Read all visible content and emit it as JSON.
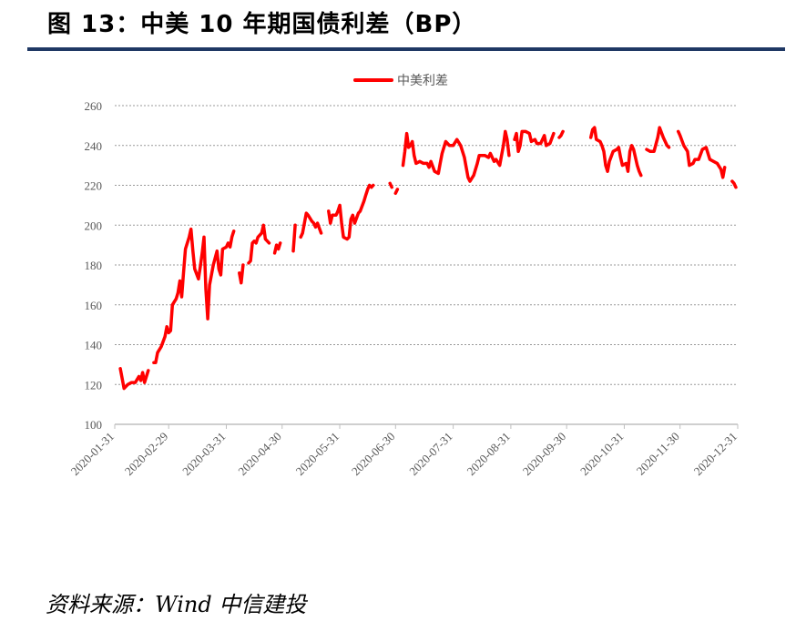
{
  "header": {
    "title": "图 13：中美 10 年期国债利差（BP）"
  },
  "footer": {
    "source": "资料来源：Wind 中信建投"
  },
  "chart_data": {
    "type": "line",
    "legend": {
      "position": "top-center",
      "entries": [
        "中美利差"
      ]
    },
    "ylim": [
      100,
      260
    ],
    "yticks": [
      100,
      120,
      140,
      160,
      180,
      200,
      220,
      240,
      260
    ],
    "xlim": [
      "2020-01-31",
      "2020-12-31"
    ],
    "xticks": [
      "2020-01-31",
      "2020-02-29",
      "2020-03-31",
      "2020-04-30",
      "2020-05-31",
      "2020-06-30",
      "2020-07-31",
      "2020-08-31",
      "2020-09-30",
      "2020-10-31",
      "2020-11-30",
      "2020-12-31"
    ],
    "grid": "horizontal-dashed",
    "colors": {
      "series": "#ff0000",
      "axis": "#bfbfbf",
      "grid": "#999999",
      "title_rule": "#1f3864"
    },
    "series": [
      {
        "name": "中美利差",
        "segments": [
          [
            [
              "2020-02-03",
              128
            ],
            [
              "2020-02-05",
              118
            ],
            [
              "2020-02-07",
              120
            ],
            [
              "2020-02-09",
              121
            ],
            [
              "2020-02-11",
              121
            ],
            [
              "2020-02-13",
              124
            ],
            [
              "2020-02-14",
              122
            ],
            [
              "2020-02-15",
              126
            ],
            [
              "2020-02-16",
              121
            ],
            [
              "2020-02-18",
              127
            ]
          ],
          [
            [
              "2020-02-21",
              131
            ],
            [
              "2020-02-22",
              131
            ],
            [
              "2020-02-23",
              136
            ],
            [
              "2020-02-25",
              139
            ],
            [
              "2020-02-27",
              144
            ],
            [
              "2020-02-28",
              149
            ],
            [
              "2020-02-29",
              146
            ],
            [
              "2020-03-01",
              147
            ],
            [
              "2020-03-02",
              160
            ],
            [
              "2020-03-04",
              163
            ],
            [
              "2020-03-05",
              166
            ],
            [
              "2020-03-06",
              172
            ],
            [
              "2020-03-07",
              164
            ],
            [
              "2020-03-08",
              176
            ],
            [
              "2020-03-09",
              188
            ],
            [
              "2020-03-11",
              194
            ],
            [
              "2020-03-12",
              198
            ],
            [
              "2020-03-13",
              187
            ],
            [
              "2020-03-14",
              178
            ],
            [
              "2020-03-16",
              173
            ],
            [
              "2020-03-17",
              179
            ],
            [
              "2020-03-18",
              186
            ],
            [
              "2020-03-19",
              194
            ],
            [
              "2020-03-20",
              168
            ],
            [
              "2020-03-21",
              153
            ],
            [
              "2020-03-22",
              170
            ],
            [
              "2020-03-24",
              180
            ],
            [
              "2020-03-26",
              187
            ],
            [
              "2020-03-27",
              178
            ],
            [
              "2020-03-28",
              175
            ],
            [
              "2020-03-29",
              188
            ],
            [
              "2020-03-31",
              189
            ],
            [
              "2020-04-01",
              191
            ],
            [
              "2020-04-02",
              189
            ],
            [
              "2020-04-03",
              194
            ],
            [
              "2020-04-04",
              197
            ]
          ],
          [
            [
              "2020-04-07",
              176
            ],
            [
              "2020-04-08",
              171
            ],
            [
              "2020-04-09",
              180
            ]
          ],
          [
            [
              "2020-04-12",
              181
            ],
            [
              "2020-04-13",
              182
            ],
            [
              "2020-04-14",
              191
            ],
            [
              "2020-04-15",
              192
            ],
            [
              "2020-04-16",
              191
            ],
            [
              "2020-04-17",
              194
            ],
            [
              "2020-04-19",
              196
            ],
            [
              "2020-04-20",
              200
            ],
            [
              "2020-04-21",
              193
            ],
            [
              "2020-04-23",
              191
            ]
          ],
          [
            [
              "2020-04-26",
              186
            ],
            [
              "2020-04-27",
              190
            ],
            [
              "2020-04-28",
              188
            ],
            [
              "2020-04-29",
              191
            ]
          ],
          [
            [
              "2020-05-06",
              187
            ],
            [
              "2020-05-07",
              200
            ]
          ],
          [
            [
              "2020-05-10",
              194
            ],
            [
              "2020-05-11",
              196
            ],
            [
              "2020-05-13",
              206
            ],
            [
              "2020-05-14",
              205
            ],
            [
              "2020-05-16",
              202
            ],
            [
              "2020-05-17",
              201
            ],
            [
              "2020-05-18",
              199
            ],
            [
              "2020-05-19",
              201
            ],
            [
              "2020-05-21",
              196
            ]
          ],
          [
            [
              "2020-05-25",
              207
            ],
            [
              "2020-05-26",
              201
            ],
            [
              "2020-05-27",
              205
            ],
            [
              "2020-05-29",
              205
            ],
            [
              "2020-05-30",
              207
            ],
            [
              "2020-05-31",
              210
            ],
            [
              "2020-06-01",
              201
            ],
            [
              "2020-06-02",
              194
            ],
            [
              "2020-06-04",
              193
            ],
            [
              "2020-06-05",
              194
            ],
            [
              "2020-06-06",
              203
            ],
            [
              "2020-06-07",
              205
            ],
            [
              "2020-06-08",
              201
            ],
            [
              "2020-06-10",
              206
            ],
            [
              "2020-06-11",
              207
            ],
            [
              "2020-06-13",
              212
            ],
            [
              "2020-06-14",
              215
            ],
            [
              "2020-06-15",
              218
            ],
            [
              "2020-06-16",
              220
            ],
            [
              "2020-06-17",
              219
            ],
            [
              "2020-06-18",
              220
            ]
          ],
          [
            [
              "2020-06-27",
              221
            ],
            [
              "2020-06-28",
              219
            ]
          ],
          [
            [
              "2020-06-30",
              216
            ],
            [
              "2020-07-01",
              218
            ]
          ],
          [
            [
              "2020-07-04",
              230
            ],
            [
              "2020-07-05",
              237
            ],
            [
              "2020-07-06",
              246
            ],
            [
              "2020-07-07",
              239
            ],
            [
              "2020-07-08",
              240
            ],
            [
              "2020-07-09",
              242
            ],
            [
              "2020-07-10",
              235
            ],
            [
              "2020-07-11",
              231
            ],
            [
              "2020-07-13",
              232
            ],
            [
              "2020-07-15",
              231
            ],
            [
              "2020-07-17",
              231
            ],
            [
              "2020-07-18",
              229
            ],
            [
              "2020-07-19",
              232
            ],
            [
              "2020-07-21",
              227
            ],
            [
              "2020-07-23",
              226
            ],
            [
              "2020-07-24",
              231
            ],
            [
              "2020-07-25",
              236
            ],
            [
              "2020-07-27",
              242
            ],
            [
              "2020-07-29",
              240
            ],
            [
              "2020-07-31",
              240
            ],
            [
              "2020-08-02",
              243
            ],
            [
              "2020-08-04",
              240
            ],
            [
              "2020-08-06",
              234
            ],
            [
              "2020-08-08",
              224
            ],
            [
              "2020-08-09",
              222
            ],
            [
              "2020-08-11",
              225
            ],
            [
              "2020-08-13",
              231
            ],
            [
              "2020-08-14",
              235
            ],
            [
              "2020-08-17",
              235
            ],
            [
              "2020-08-19",
              234
            ],
            [
              "2020-08-20",
              236
            ],
            [
              "2020-08-22",
              232
            ],
            [
              "2020-08-23",
              233
            ],
            [
              "2020-08-25",
              230
            ],
            [
              "2020-08-27",
              240
            ],
            [
              "2020-08-28",
              247
            ],
            [
              "2020-08-29",
              243
            ],
            [
              "2020-08-30",
              235
            ]
          ],
          [
            [
              "2020-09-02",
              243
            ],
            [
              "2020-09-03",
              246
            ],
            [
              "2020-09-04",
              237
            ],
            [
              "2020-09-05",
              240
            ],
            [
              "2020-09-06",
              247
            ],
            [
              "2020-09-08",
              247
            ],
            [
              "2020-09-10",
              246
            ],
            [
              "2020-09-11",
              242
            ],
            [
              "2020-09-13",
              243
            ],
            [
              "2020-09-14",
              241
            ],
            [
              "2020-09-16",
              241
            ],
            [
              "2020-09-18",
              245
            ],
            [
              "2020-09-19",
              240
            ],
            [
              "2020-09-21",
              241
            ],
            [
              "2020-09-23",
              246
            ]
          ],
          [
            [
              "2020-09-26",
              244
            ],
            [
              "2020-09-27",
              245
            ],
            [
              "2020-09-28",
              247
            ]
          ],
          [
            [
              "2020-10-13",
              244
            ],
            [
              "2020-10-14",
              248
            ],
            [
              "2020-10-15",
              249
            ],
            [
              "2020-10-16",
              243
            ],
            [
              "2020-10-18",
              242
            ],
            [
              "2020-10-19",
              240
            ],
            [
              "2020-10-20",
              237
            ],
            [
              "2020-10-21",
              230
            ],
            [
              "2020-10-22",
              227
            ],
            [
              "2020-10-23",
              232
            ],
            [
              "2020-10-25",
              237
            ],
            [
              "2020-10-27",
              238
            ],
            [
              "2020-10-28",
              239
            ],
            [
              "2020-10-29",
              234
            ],
            [
              "2020-10-30",
              230
            ],
            [
              "2020-11-01",
              231
            ],
            [
              "2020-11-02",
              227
            ],
            [
              "2020-11-03",
              237
            ],
            [
              "2020-11-04",
              240
            ],
            [
              "2020-11-05",
              238
            ],
            [
              "2020-11-07",
              230
            ],
            [
              "2020-11-08",
              227
            ],
            [
              "2020-11-09",
              225
            ]
          ],
          [
            [
              "2020-11-12",
              238
            ],
            [
              "2020-11-14",
              237
            ],
            [
              "2020-11-16",
              237
            ],
            [
              "2020-11-18",
              244
            ],
            [
              "2020-11-19",
              249
            ],
            [
              "2020-11-21",
              244
            ],
            [
              "2020-11-23",
              240
            ],
            [
              "2020-11-24",
              239
            ]
          ],
          [
            [
              "2020-11-29",
              247
            ],
            [
              "2020-11-30",
              245
            ],
            [
              "2020-12-02",
              240
            ],
            [
              "2020-12-04",
              237
            ],
            [
              "2020-12-05",
              230
            ],
            [
              "2020-12-07",
              231
            ],
            [
              "2020-12-08",
              233
            ],
            [
              "2020-12-10",
              233
            ],
            [
              "2020-12-12",
              238
            ],
            [
              "2020-12-14",
              239
            ],
            [
              "2020-12-16",
              233
            ],
            [
              "2020-12-18",
              232
            ],
            [
              "2020-12-20",
              231
            ],
            [
              "2020-12-22",
              228
            ],
            [
              "2020-12-23",
              224
            ],
            [
              "2020-12-24",
              229
            ]
          ],
          [
            [
              "2020-12-28",
              222
            ],
            [
              "2020-12-29",
              221
            ],
            [
              "2020-12-30",
              219
            ]
          ]
        ]
      }
    ]
  }
}
